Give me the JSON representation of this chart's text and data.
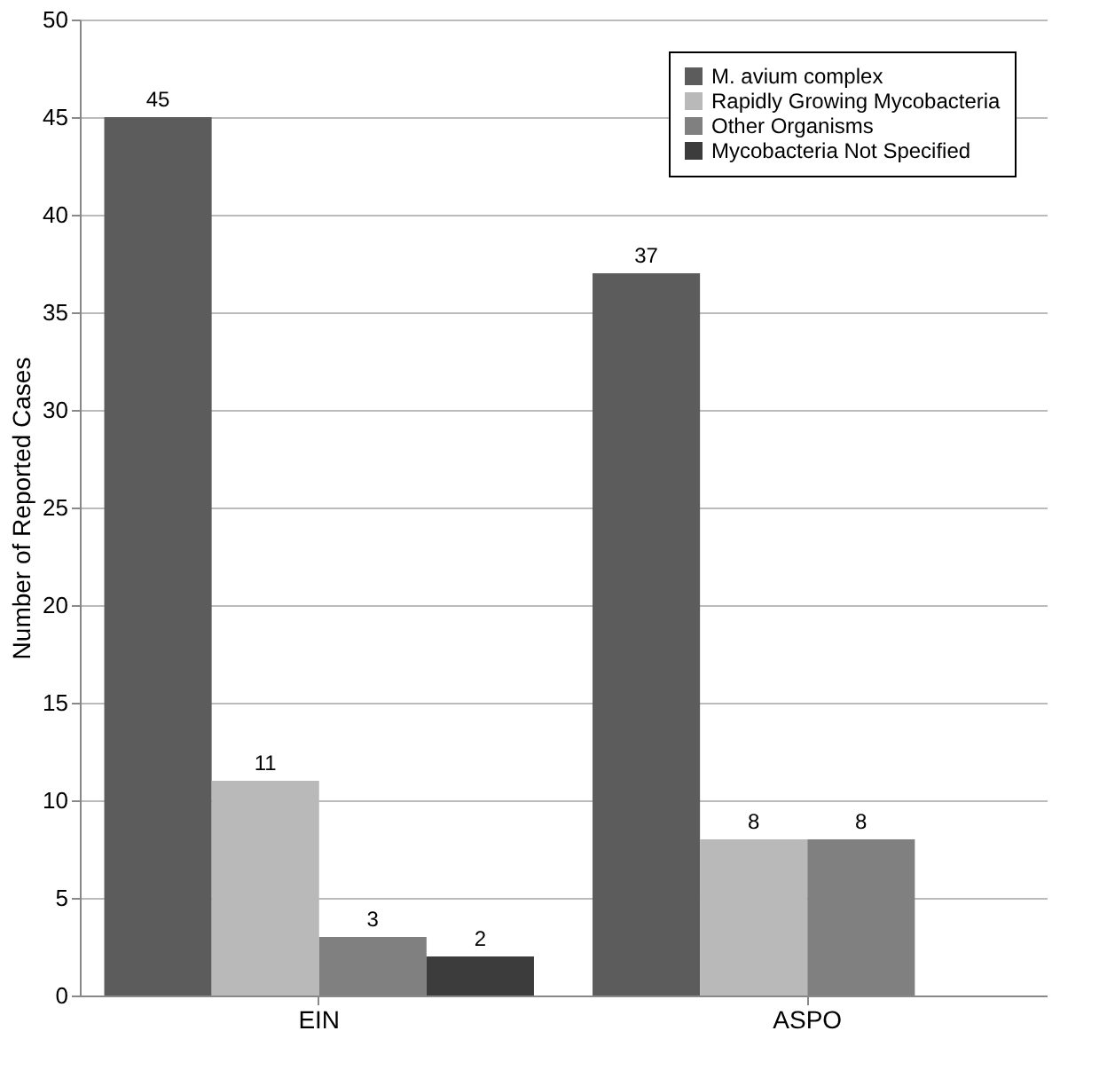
{
  "chart_data": {
    "type": "bar",
    "ylabel": "Number of Reported Cases",
    "categories": [
      "EIN",
      "ASPO"
    ],
    "series": [
      {
        "name": "M. avium complex",
        "color": "#5c5c5c",
        "values": [
          45,
          37
        ]
      },
      {
        "name": "Rapidly Growing Mycobacteria",
        "color": "#b9b9b9",
        "values": [
          11,
          8
        ]
      },
      {
        "name": "Other Organisms",
        "color": "#808080",
        "values": [
          3,
          8
        ]
      },
      {
        "name": "Mycobacteria Not Specified",
        "color": "#3c3c3c",
        "values": [
          2,
          null
        ]
      }
    ],
    "ylim": [
      0,
      50
    ],
    "yticks": [
      0,
      5,
      10,
      15,
      20,
      25,
      30,
      35,
      40,
      45,
      50
    ],
    "grid": "y",
    "legend": "top right",
    "data_labels": true
  }
}
